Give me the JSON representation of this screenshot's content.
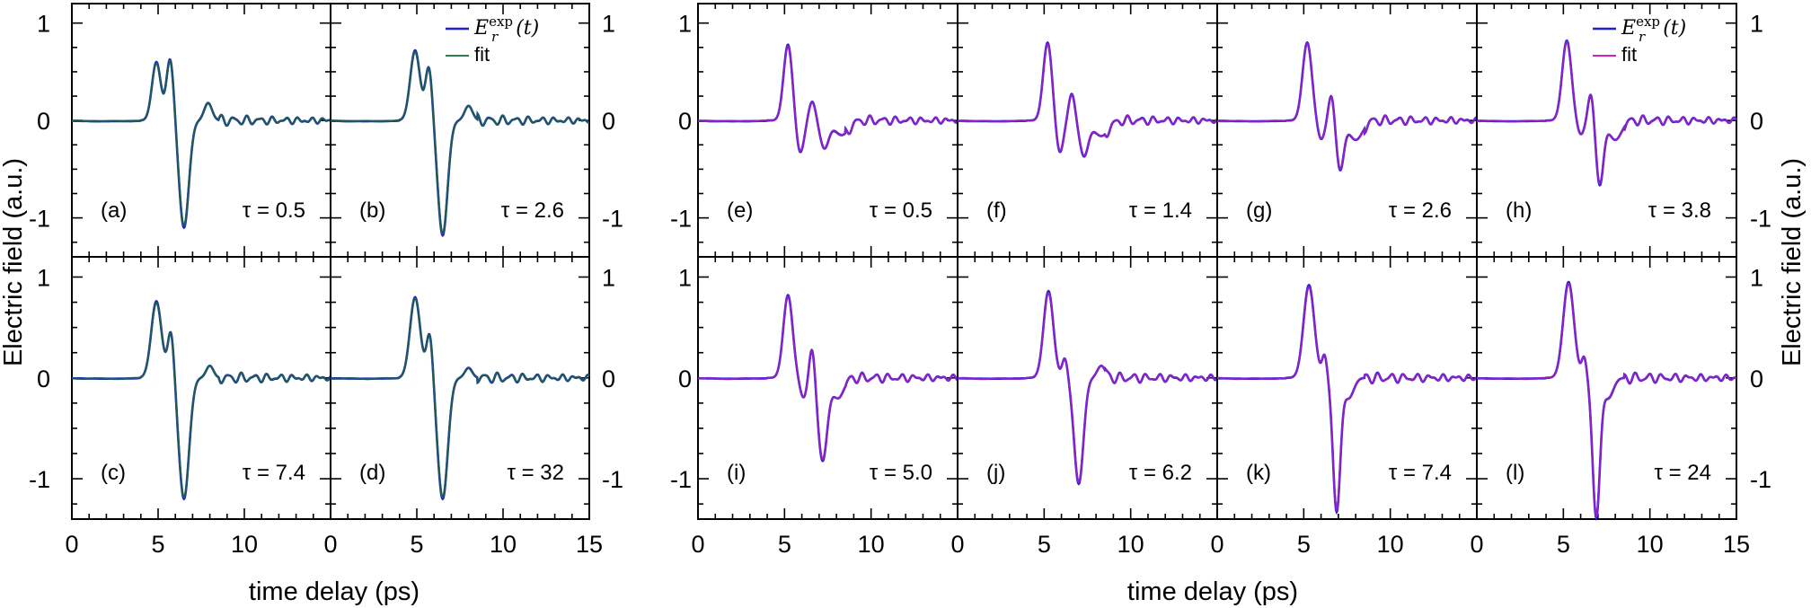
{
  "colors": {
    "axis": "#000000",
    "experiment": "#1f1fd6",
    "fit_left": "#2e7d4f",
    "fit_right": "#d61fb5",
    "overlay_left": "#1e5a5a",
    "overlay_right": "#8a22c8"
  },
  "figure": {
    "ylabel_left": "Electric field (a.u.)",
    "ylabel_right": "Electric field (a.u.)",
    "xlabel_left": "time delay (ps)",
    "xlabel_right": "time delay (ps)",
    "x_ticks": [
      "0",
      "5",
      "10",
      "15"
    ],
    "y_ticks": [
      "1",
      "0",
      "-1"
    ],
    "legend": {
      "exp_main": "E",
      "exp_sub": "r",
      "exp_sup": "exp",
      "exp_arg": "(t)",
      "fit": "fit"
    }
  },
  "chart_data": [
    {
      "panel": "a",
      "label": "(a)",
      "tau": "τ = 0.5",
      "group": "left",
      "type": "line",
      "xlim": [
        0,
        15
      ],
      "ylim": [
        -1.4,
        1.2
      ],
      "legend": false,
      "series": [
        {
          "values": [
            {
              "t": 4.9,
              "a": 0.6,
              "w": 0.36
            },
            {
              "t": 5.7,
              "a": 0.64,
              "w": 0.3
            },
            {
              "t": 6.5,
              "a": -1.1,
              "w": 0.4
            },
            {
              "t": 7.9,
              "a": 0.18,
              "w": 0.32
            }
          ]
        }
      ]
    },
    {
      "panel": "b",
      "label": "(b)",
      "tau": "τ = 2.6",
      "group": "left",
      "type": "line",
      "xlim": [
        0,
        15
      ],
      "ylim": [
        -1.4,
        1.2
      ],
      "legend": true,
      "series": [
        {
          "values": [
            {
              "t": 4.9,
              "a": 0.72,
              "w": 0.4
            },
            {
              "t": 5.7,
              "a": 0.55,
              "w": 0.28
            },
            {
              "t": 6.5,
              "a": -1.18,
              "w": 0.4
            },
            {
              "t": 8.0,
              "a": 0.15,
              "w": 0.32
            }
          ]
        }
      ]
    },
    {
      "panel": "c",
      "label": "(c)",
      "tau": "τ = 7.4",
      "group": "left",
      "type": "line",
      "xlim": [
        0,
        15
      ],
      "ylim": [
        -1.4,
        1.2
      ],
      "legend": false,
      "series": [
        {
          "values": [
            {
              "t": 4.9,
              "a": 0.76,
              "w": 0.42
            },
            {
              "t": 5.75,
              "a": 0.48,
              "w": 0.26
            },
            {
              "t": 6.5,
              "a": -1.2,
              "w": 0.42
            },
            {
              "t": 8.0,
              "a": 0.12,
              "w": 0.3
            }
          ]
        }
      ]
    },
    {
      "panel": "d",
      "label": "(d)",
      "tau": "τ = 32",
      "group": "left",
      "type": "line",
      "xlim": [
        0,
        15
      ],
      "ylim": [
        -1.4,
        1.2
      ],
      "legend": false,
      "series": [
        {
          "values": [
            {
              "t": 4.9,
              "a": 0.8,
              "w": 0.42
            },
            {
              "t": 5.75,
              "a": 0.46,
              "w": 0.26
            },
            {
              "t": 6.5,
              "a": -1.2,
              "w": 0.42
            },
            {
              "t": 8.0,
              "a": 0.1,
              "w": 0.3
            }
          ]
        }
      ]
    },
    {
      "panel": "e",
      "label": "(e)",
      "tau": "τ = 0.5",
      "group": "right",
      "type": "line",
      "xlim": [
        0,
        15
      ],
      "ylim": [
        -1.4,
        1.2
      ],
      "legend": false,
      "series": [
        {
          "values": [
            {
              "t": 5.2,
              "a": 0.78,
              "w": 0.36
            },
            {
              "t": 5.9,
              "a": -0.34,
              "w": 0.32
            },
            {
              "t": 6.6,
              "a": 0.2,
              "w": 0.28
            },
            {
              "t": 7.3,
              "a": -0.28,
              "w": 0.35
            },
            {
              "t": 8.3,
              "a": -0.15,
              "w": 0.6
            }
          ]
        }
      ]
    },
    {
      "panel": "f",
      "label": "(f)",
      "tau": "τ = 1.4",
      "group": "right",
      "type": "line",
      "xlim": [
        0,
        15
      ],
      "ylim": [
        -1.4,
        1.2
      ],
      "legend": false,
      "series": [
        {
          "values": [
            {
              "t": 5.2,
              "a": 0.8,
              "w": 0.36
            },
            {
              "t": 5.9,
              "a": -0.34,
              "w": 0.3
            },
            {
              "t": 6.6,
              "a": 0.28,
              "w": 0.26
            },
            {
              "t": 7.3,
              "a": -0.36,
              "w": 0.35
            },
            {
              "t": 8.3,
              "a": -0.16,
              "w": 0.6
            }
          ]
        }
      ]
    },
    {
      "panel": "g",
      "label": "(g)",
      "tau": "τ = 2.6",
      "group": "right",
      "type": "line",
      "xlim": [
        0,
        15
      ],
      "ylim": [
        -1.4,
        1.2
      ],
      "legend": false,
      "series": [
        {
          "values": [
            {
              "t": 5.2,
              "a": 0.8,
              "w": 0.38
            },
            {
              "t": 6.0,
              "a": -0.2,
              "w": 0.3
            },
            {
              "t": 6.6,
              "a": 0.28,
              "w": 0.24
            },
            {
              "t": 7.1,
              "a": -0.5,
              "w": 0.3
            },
            {
              "t": 8.0,
              "a": -0.2,
              "w": 0.55
            }
          ]
        }
      ]
    },
    {
      "panel": "h",
      "label": "(h)",
      "tau": "τ = 3.8",
      "group": "right",
      "type": "line",
      "xlim": [
        0,
        15
      ],
      "ylim": [
        -1.4,
        1.2
      ],
      "legend": true,
      "series": [
        {
          "values": [
            {
              "t": 5.2,
              "a": 0.82,
              "w": 0.38
            },
            {
              "t": 6.0,
              "a": -0.15,
              "w": 0.3
            },
            {
              "t": 6.6,
              "a": 0.3,
              "w": 0.24
            },
            {
              "t": 7.1,
              "a": -0.66,
              "w": 0.3
            },
            {
              "t": 8.0,
              "a": -0.2,
              "w": 0.5
            }
          ]
        }
      ]
    },
    {
      "panel": "i",
      "label": "(i)",
      "tau": "τ = 5.0",
      "group": "right",
      "type": "line",
      "xlim": [
        0,
        15
      ],
      "ylim": [
        -1.4,
        1.2
      ],
      "legend": false,
      "series": [
        {
          "values": [
            {
              "t": 5.2,
              "a": 0.82,
              "w": 0.38
            },
            {
              "t": 6.1,
              "a": -0.2,
              "w": 0.3
            },
            {
              "t": 6.6,
              "a": 0.35,
              "w": 0.24
            },
            {
              "t": 7.2,
              "a": -0.82,
              "w": 0.38
            },
            {
              "t": 8.1,
              "a": -0.2,
              "w": 0.45
            }
          ]
        }
      ]
    },
    {
      "panel": "j",
      "label": "(j)",
      "tau": "τ = 6.2",
      "group": "right",
      "type": "line",
      "xlim": [
        0,
        15
      ],
      "ylim": [
        -1.4,
        1.2
      ],
      "legend": false,
      "series": [
        {
          "values": [
            {
              "t": 5.25,
              "a": 0.86,
              "w": 0.4
            },
            {
              "t": 6.2,
              "a": 0.2,
              "w": 0.22
            },
            {
              "t": 7.0,
              "a": -1.05,
              "w": 0.38
            },
            {
              "t": 8.3,
              "a": 0.12,
              "w": 0.32
            }
          ]
        }
      ]
    },
    {
      "panel": "k",
      "label": "(k)",
      "tau": "τ = 7.4",
      "group": "right",
      "type": "line",
      "xlim": [
        0,
        15
      ],
      "ylim": [
        -1.4,
        1.2
      ],
      "legend": false,
      "series": [
        {
          "values": [
            {
              "t": 5.3,
              "a": 0.92,
              "w": 0.44
            },
            {
              "t": 6.2,
              "a": 0.22,
              "w": 0.2
            },
            {
              "t": 6.9,
              "a": -1.32,
              "w": 0.3
            },
            {
              "t": 7.6,
              "a": -0.2,
              "w": 0.4
            }
          ]
        }
      ]
    },
    {
      "panel": "l",
      "label": "(l)",
      "tau": "τ = 24",
      "group": "right",
      "type": "line",
      "xlim": [
        0,
        15
      ],
      "ylim": [
        -1.4,
        1.2
      ],
      "legend": false,
      "series": [
        {
          "values": [
            {
              "t": 5.3,
              "a": 0.95,
              "w": 0.44
            },
            {
              "t": 6.2,
              "a": 0.2,
              "w": 0.2
            },
            {
              "t": 6.9,
              "a": -1.38,
              "w": 0.3
            },
            {
              "t": 7.6,
              "a": -0.2,
              "w": 0.4
            }
          ]
        }
      ]
    }
  ]
}
